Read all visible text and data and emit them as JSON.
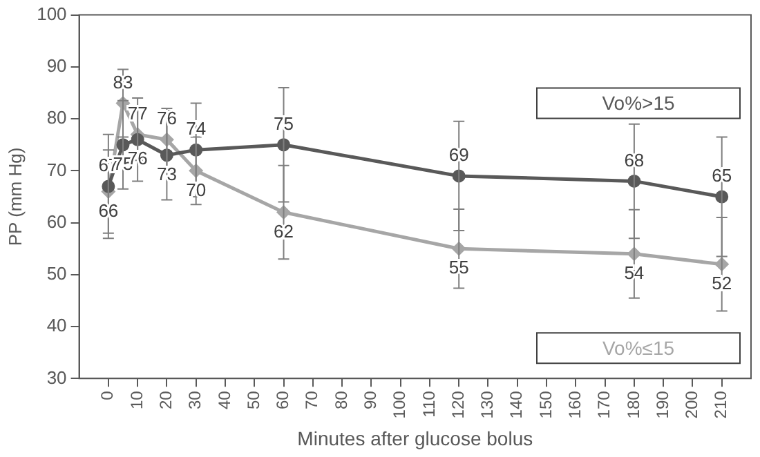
{
  "chart_data": {
    "type": "line",
    "xlabel": "Minutes after glucose bolus",
    "ylabel": "PP (mm Hg)",
    "x": [
      0,
      5,
      10,
      20,
      30,
      60,
      120,
      180,
      210
    ],
    "series": [
      {
        "name": "Vo%>15",
        "color": "#595959",
        "marker": "circle",
        "values": [
          67,
          75,
          76,
          73,
          74,
          75,
          69,
          68,
          65
        ],
        "errors": [
          10,
          8.5,
          8,
          8.6,
          9,
          11,
          10.5,
          11,
          11.5
        ]
      },
      {
        "name": "Vo%≤15",
        "color": "#a6a6a6",
        "marker": "diamond",
        "values": [
          66,
          83,
          77,
          76,
          70,
          62,
          55,
          54,
          52
        ],
        "errors": [
          8,
          6.5,
          5,
          6,
          6.5,
          9,
          7.6,
          8.5,
          9
        ]
      }
    ],
    "xlim": [
      -10,
      220
    ],
    "xticks": [
      0,
      10,
      20,
      30,
      40,
      50,
      60,
      70,
      80,
      90,
      100,
      110,
      120,
      130,
      140,
      150,
      160,
      170,
      180,
      190,
      200,
      210
    ],
    "ylim": [
      30,
      100
    ],
    "yticks": [
      30,
      40,
      50,
      60,
      70,
      80,
      90,
      100
    ],
    "grid": false,
    "legend": false,
    "data_labels": true,
    "line_style": "solid"
  }
}
